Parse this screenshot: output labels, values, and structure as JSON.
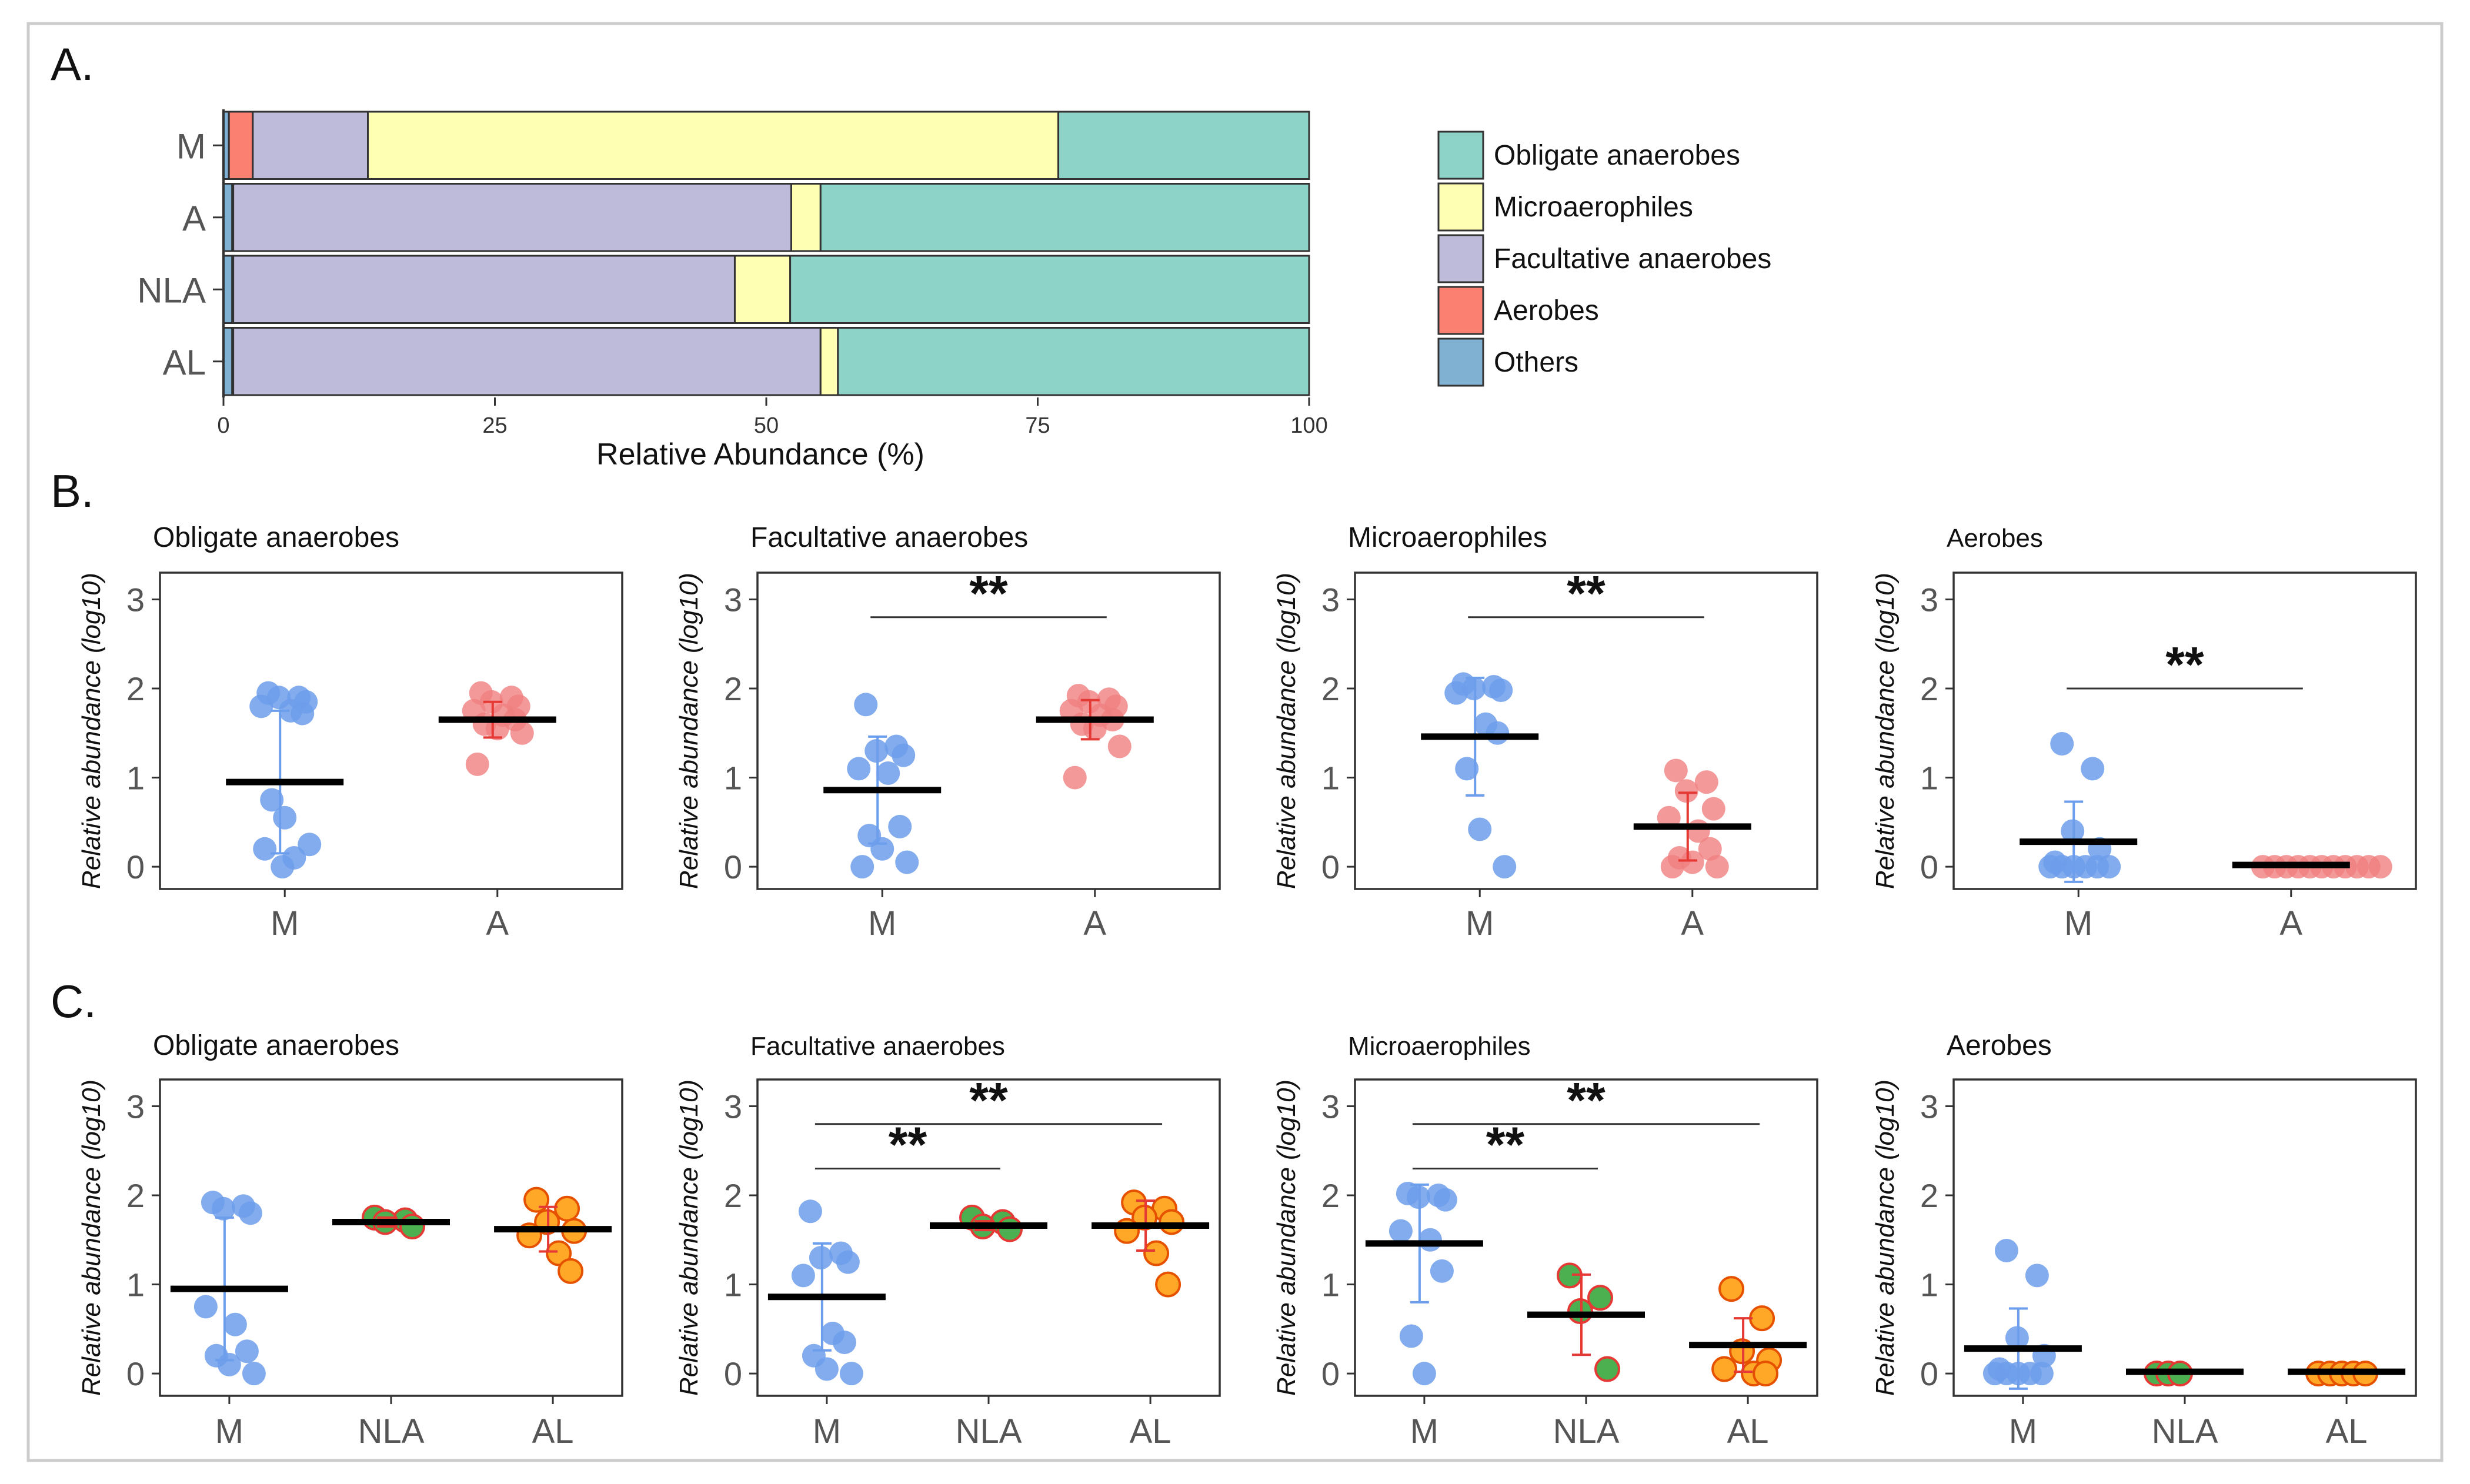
{
  "colors": {
    "obligate": "#8DD3C7",
    "micro": "#FFFFB3",
    "facultative": "#BEBADA",
    "aerobes": "#FB8072",
    "others": "#80B1D3",
    "groupM": "#6D9EEB",
    "groupA": "#F08080",
    "nlaFill": "#4CAF50",
    "nlaStroke": "#E53935",
    "alFill": "#FFA726",
    "alStroke": "#E65100",
    "errM": "#6D9EEB",
    "errA": "#E53935"
  },
  "panels": {
    "A": {
      "label": "A."
    },
    "B": {
      "label": "B."
    },
    "C": {
      "label": "C."
    }
  },
  "chart_data": [
    {
      "id": "A",
      "type": "bar",
      "orientation": "horizontal",
      "stacked": true,
      "categories": [
        "M",
        "A",
        "NLA",
        "AL"
      ],
      "xlabel": "Relative Abundance (%)",
      "xlim": [
        0,
        100
      ],
      "xticks": [
        "0",
        "25",
        "50",
        "75",
        "100"
      ],
      "legend_position": "right",
      "legend": [
        "Obligate anaerobes",
        "Microaerophiles",
        "Facultative anaerobes",
        "Aerobes",
        "Others"
      ],
      "stack_order": [
        "Others",
        "Aerobes",
        "Facultative anaerobes",
        "Microaerophiles",
        "Obligate anaerobes"
      ],
      "series": [
        {
          "name": "Others",
          "color_key": "others",
          "values": [
            0.5,
            0.8,
            0.8,
            0.8
          ]
        },
        {
          "name": "Aerobes",
          "color_key": "aerobes",
          "values": [
            2.2,
            0.1,
            0.1,
            0.1
          ]
        },
        {
          "name": "Facultative anaerobes",
          "color_key": "facultative",
          "values": [
            10.6,
            51.4,
            46.2,
            54.1
          ]
        },
        {
          "name": "Microaerophiles",
          "color_key": "micro",
          "values": [
            63.6,
            2.7,
            5.1,
            1.6
          ]
        },
        {
          "name": "Obligate anaerobes",
          "color_key": "obligate",
          "values": [
            23.1,
            45.0,
            47.8,
            43.4
          ]
        }
      ]
    },
    {
      "id": "B1",
      "type": "scatter",
      "title": "Obligate anaerobes",
      "ylabel": "Relative abundance (log10)",
      "ylim": [
        -0.25,
        3.3
      ],
      "yticks": [
        "0",
        "1",
        "2",
        "3"
      ],
      "categories": [
        "M",
        "A"
      ],
      "groups": [
        {
          "name": "M",
          "style": "M",
          "mean": 0.95,
          "sd": 0.8,
          "points": [
            1.95,
            1.9,
            1.9,
            1.85,
            1.8,
            1.75,
            1.72,
            0.75,
            0.55,
            0.25,
            0.2,
            0.1,
            0.0
          ]
        },
        {
          "name": "A",
          "style": "A",
          "mean": 1.65,
          "sd": 0.2,
          "points": [
            1.95,
            1.9,
            1.85,
            1.8,
            1.75,
            1.7,
            1.65,
            1.6,
            1.55,
            1.5,
            1.15
          ]
        }
      ],
      "sig": []
    },
    {
      "id": "B2",
      "type": "scatter",
      "title": "Facultative anaerobes",
      "ylabel": "Relative abundance (log10)",
      "ylim": [
        -0.25,
        3.3
      ],
      "yticks": [
        "0",
        "1",
        "2",
        "3"
      ],
      "categories": [
        "M",
        "A"
      ],
      "groups": [
        {
          "name": "M",
          "style": "M",
          "mean": 0.86,
          "sd": 0.6,
          "points": [
            1.82,
            1.35,
            1.3,
            1.25,
            1.1,
            1.05,
            0.45,
            0.35,
            0.2,
            0.05,
            0.0
          ]
        },
        {
          "name": "A",
          "style": "A",
          "mean": 1.65,
          "sd": 0.22,
          "points": [
            1.92,
            1.88,
            1.85,
            1.8,
            1.75,
            1.7,
            1.65,
            1.6,
            1.55,
            1.35,
            1.0
          ]
        }
      ],
      "sig": [
        {
          "from": 0,
          "to": 1,
          "y": 2.8,
          "label": "**"
        }
      ]
    },
    {
      "id": "B3",
      "type": "scatter",
      "title": "Microaerophiles",
      "ylabel": "Relative abundance (log10)",
      "ylim": [
        -0.25,
        3.3
      ],
      "yticks": [
        "0",
        "1",
        "2",
        "3"
      ],
      "categories": [
        "M",
        "A"
      ],
      "groups": [
        {
          "name": "M",
          "style": "M",
          "mean": 1.46,
          "sd": 0.66,
          "points": [
            2.05,
            2.02,
            2.0,
            1.98,
            1.95,
            1.6,
            1.5,
            1.1,
            0.42,
            0.0
          ]
        },
        {
          "name": "A",
          "style": "A",
          "mean": 0.45,
          "sd": 0.38,
          "points": [
            1.08,
            0.95,
            0.85,
            0.65,
            0.55,
            0.4,
            0.2,
            0.1,
            0.05,
            0.0,
            0.0
          ]
        }
      ],
      "sig": [
        {
          "from": 0,
          "to": 1,
          "y": 2.8,
          "label": "**"
        }
      ]
    },
    {
      "id": "B4",
      "type": "scatter",
      "title": "Aerobes",
      "ylabel": "Relative abundance (log10)",
      "ylim": [
        -0.25,
        3.3
      ],
      "yticks": [
        "0",
        "1",
        "2",
        "3"
      ],
      "categories": [
        "M",
        "A"
      ],
      "groups": [
        {
          "name": "M",
          "style": "M",
          "mean": 0.28,
          "sd": 0.45,
          "points": [
            1.38,
            1.1,
            0.4,
            0.2,
            0.05,
            0.0,
            0.0,
            0.0,
            0.0,
            0.0,
            0.0
          ]
        },
        {
          "name": "A",
          "style": "A",
          "mean": 0.02,
          "sd": 0.0,
          "points": [
            0.0,
            0.0,
            0.0,
            0.0,
            0.0,
            0.0,
            0.0,
            0.0,
            0.0,
            0.0,
            0.0
          ]
        }
      ],
      "sig": [
        {
          "from": 0,
          "to": 1,
          "y": 2.0,
          "label": "**"
        }
      ]
    },
    {
      "id": "C1",
      "type": "scatter",
      "title": "Obligate anaerobes",
      "ylabel": "Relative abundance (log10)",
      "ylim": [
        -0.25,
        3.3
      ],
      "yticks": [
        "0",
        "1",
        "2",
        "3"
      ],
      "categories": [
        "M",
        "NLA",
        "AL"
      ],
      "groups": [
        {
          "name": "M",
          "style": "M",
          "mean": 0.95,
          "sd": 0.8,
          "points": [
            1.92,
            1.88,
            1.85,
            1.8,
            0.75,
            0.55,
            0.25,
            0.2,
            0.1,
            0.0
          ]
        },
        {
          "name": "NLA",
          "style": "NLA",
          "mean": 1.7,
          "sd": 0.05,
          "points": [
            1.75,
            1.72,
            1.7,
            1.65
          ]
        },
        {
          "name": "AL",
          "style": "AL",
          "mean": 1.62,
          "sd": 0.25,
          "points": [
            1.95,
            1.85,
            1.7,
            1.6,
            1.55,
            1.35,
            1.15
          ]
        }
      ],
      "sig": []
    },
    {
      "id": "C2",
      "type": "scatter",
      "title": "Facultative anaerobes",
      "ylabel": "Relative abundance (log10)",
      "ylim": [
        -0.25,
        3.3
      ],
      "yticks": [
        "0",
        "1",
        "2",
        "3"
      ],
      "categories": [
        "M",
        "NLA",
        "AL"
      ],
      "groups": [
        {
          "name": "M",
          "style": "M",
          "mean": 0.86,
          "sd": 0.6,
          "points": [
            1.82,
            1.35,
            1.3,
            1.25,
            1.1,
            0.45,
            0.35,
            0.2,
            0.05,
            0.0
          ]
        },
        {
          "name": "NLA",
          "style": "NLA",
          "mean": 1.66,
          "sd": 0.05,
          "points": [
            1.75,
            1.7,
            1.65,
            1.62
          ]
        },
        {
          "name": "AL",
          "style": "AL",
          "mean": 1.66,
          "sd": 0.28,
          "points": [
            1.92,
            1.85,
            1.75,
            1.7,
            1.6,
            1.35,
            1.0
          ]
        }
      ],
      "sig": [
        {
          "from": 0,
          "to": 1,
          "y": 2.3,
          "label": "**"
        },
        {
          "from": 0,
          "to": 2,
          "y": 2.8,
          "label": "**"
        }
      ]
    },
    {
      "id": "C3",
      "type": "scatter",
      "title": "Microaerophiles",
      "ylabel": "Relative abundance (log10)",
      "ylim": [
        -0.25,
        3.3
      ],
      "yticks": [
        "0",
        "1",
        "2",
        "3"
      ],
      "categories": [
        "M",
        "NLA",
        "AL"
      ],
      "groups": [
        {
          "name": "M",
          "style": "M",
          "mean": 1.46,
          "sd": 0.66,
          "points": [
            2.02,
            2.0,
            1.98,
            1.95,
            1.6,
            1.5,
            1.15,
            0.42,
            0.0
          ]
        },
        {
          "name": "NLA",
          "style": "NLA",
          "mean": 0.66,
          "sd": 0.45,
          "points": [
            1.1,
            0.85,
            0.7,
            0.05
          ]
        },
        {
          "name": "AL",
          "style": "AL",
          "mean": 0.32,
          "sd": 0.3,
          "points": [
            0.95,
            0.62,
            0.25,
            0.15,
            0.05,
            0.0,
            0.0
          ]
        }
      ],
      "sig": [
        {
          "from": 0,
          "to": 1,
          "y": 2.3,
          "label": "**"
        },
        {
          "from": 0,
          "to": 2,
          "y": 2.8,
          "label": "**"
        }
      ]
    },
    {
      "id": "C4",
      "type": "scatter",
      "title": "Aerobes",
      "ylabel": "Relative abundance (log10)",
      "ylim": [
        -0.25,
        3.3
      ],
      "yticks": [
        "0",
        "1",
        "2",
        "3"
      ],
      "categories": [
        "M",
        "NLA",
        "AL"
      ],
      "groups": [
        {
          "name": "M",
          "style": "M",
          "mean": 0.28,
          "sd": 0.45,
          "points": [
            1.38,
            1.1,
            0.4,
            0.2,
            0.05,
            0.0,
            0.0,
            0.0,
            0.0,
            0.0
          ]
        },
        {
          "name": "NLA",
          "style": "NLA",
          "mean": 0.02,
          "sd": 0.0,
          "points": [
            0.0,
            0.0,
            0.0
          ]
        },
        {
          "name": "AL",
          "style": "AL",
          "mean": 0.02,
          "sd": 0.0,
          "points": [
            0.0,
            0.0,
            0.0,
            0.0,
            0.0
          ]
        }
      ],
      "sig": []
    }
  ]
}
